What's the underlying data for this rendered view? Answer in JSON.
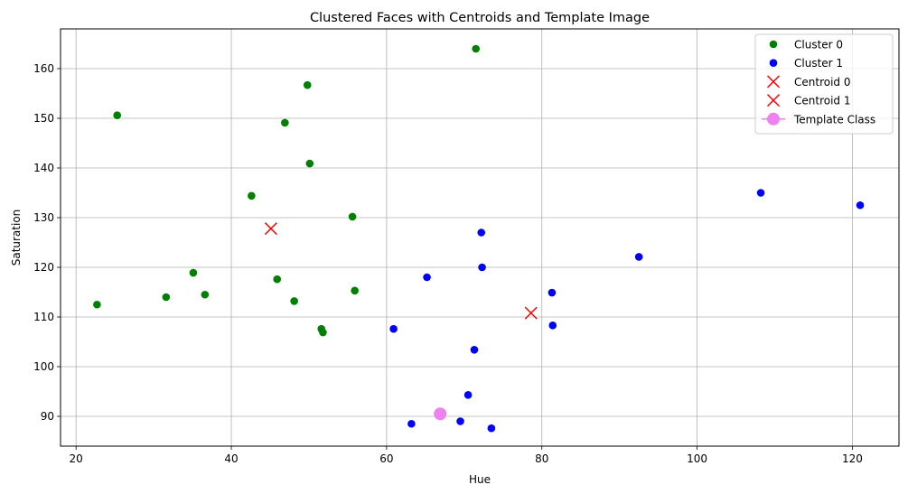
{
  "chart_data": {
    "type": "scatter",
    "title": "Clustered Faces with Centroids and Template Image",
    "xlabel": "Hue",
    "ylabel": "Saturation",
    "xlim": [
      18,
      126
    ],
    "ylim": [
      84,
      168
    ],
    "xticks": [
      20,
      40,
      60,
      80,
      100,
      120
    ],
    "yticks": [
      90,
      100,
      110,
      120,
      130,
      140,
      150,
      160
    ],
    "grid": true,
    "legend_position": "top-right",
    "series": [
      {
        "name": "Cluster 0",
        "marker": "circle",
        "color": "#008000",
        "points": [
          [
            71.5,
            164.0
          ],
          [
            49.8,
            156.7
          ],
          [
            25.3,
            150.6
          ],
          [
            46.9,
            149.1
          ],
          [
            50.1,
            140.9
          ],
          [
            42.6,
            134.4
          ],
          [
            55.6,
            130.2
          ],
          [
            35.1,
            118.9
          ],
          [
            45.9,
            117.6
          ],
          [
            36.6,
            114.5
          ],
          [
            55.9,
            115.3
          ],
          [
            31.6,
            114.0
          ],
          [
            48.1,
            113.2
          ],
          [
            22.7,
            112.5
          ],
          [
            51.6,
            107.6
          ],
          [
            51.8,
            106.9
          ]
        ]
      },
      {
        "name": "Cluster 1",
        "marker": "circle",
        "color": "#0000ff",
        "points": [
          [
            108.2,
            135.0
          ],
          [
            121.0,
            132.5
          ],
          [
            72.2,
            127.0
          ],
          [
            92.5,
            122.1
          ],
          [
            72.3,
            120.0
          ],
          [
            65.2,
            118.0
          ],
          [
            81.3,
            114.9
          ],
          [
            81.4,
            108.3
          ],
          [
            60.9,
            107.6
          ],
          [
            71.3,
            103.4
          ],
          [
            70.5,
            94.3
          ],
          [
            63.2,
            88.5
          ],
          [
            69.5,
            89.0
          ],
          [
            73.5,
            87.6
          ]
        ]
      },
      {
        "name": "Centroid 0",
        "marker": "x",
        "color": "#ff0000",
        "points": [
          [
            45.1,
            127.8
          ]
        ]
      },
      {
        "name": "Centroid 1",
        "marker": "x",
        "color": "#ff0000",
        "points": [
          [
            78.6,
            110.8
          ]
        ]
      },
      {
        "name": "Template Class",
        "marker": "big-circle-line",
        "color": "#ee82ee",
        "points": [
          [
            66.9,
            90.5
          ]
        ]
      }
    ]
  }
}
